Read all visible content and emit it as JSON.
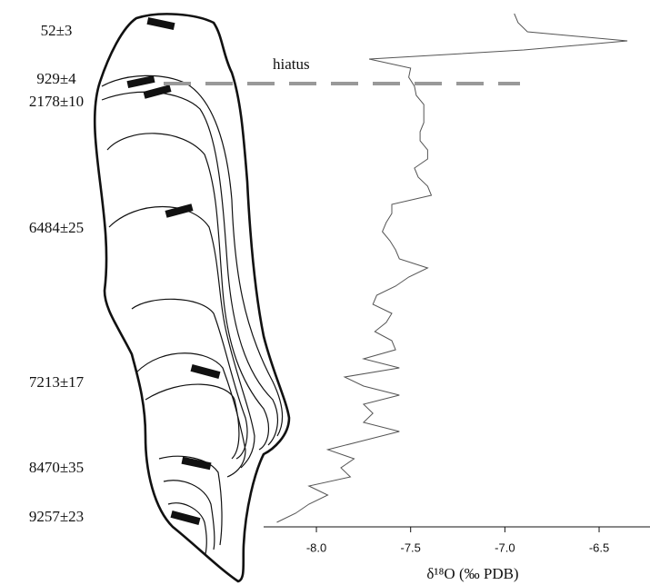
{
  "chart_data": {
    "type": "line",
    "orientation": "vertical",
    "annotations": [
      "52±3",
      "929±4",
      "2178±10",
      "6484±25",
      "7213±17",
      "8470±35",
      "9257±23"
    ],
    "hiatus_label": "hiatus",
    "xlabel": "δ¹⁸O (‰ PDB)",
    "xlim": [
      -8.28,
      -6.23
    ],
    "xticks": [
      {
        "value": -8,
        "label": "-8.0"
      },
      -7.5,
      {
        "value": -7,
        "label": "-7.0"
      },
      -6.5
    ],
    "color": "#555555",
    "values": [
      -6.95,
      -6.93,
      -6.88,
      -6.35,
      -6.9,
      -7.72,
      -7.5,
      -7.51,
      -7.48,
      -7.47,
      -7.43,
      -7.43,
      -7.43,
      -7.45,
      -7.45,
      -7.41,
      -7.41,
      -7.48,
      -7.46,
      -7.41,
      -7.39,
      -7.6,
      -7.6,
      -7.63,
      -7.65,
      -7.61,
      -7.58,
      -7.56,
      -7.41,
      -7.51,
      -7.58,
      -7.68,
      -7.7,
      -7.6,
      -7.63,
      -7.69,
      -7.6,
      -7.58,
      -7.75,
      -7.56,
      -7.85,
      -7.75,
      -7.56,
      -7.75,
      -7.7,
      -7.75,
      -7.56,
      -7.75,
      -7.94,
      -7.8,
      -7.87,
      -7.82,
      -8.04,
      -7.94,
      -8.04,
      -8.11,
      -8.21
    ]
  }
}
